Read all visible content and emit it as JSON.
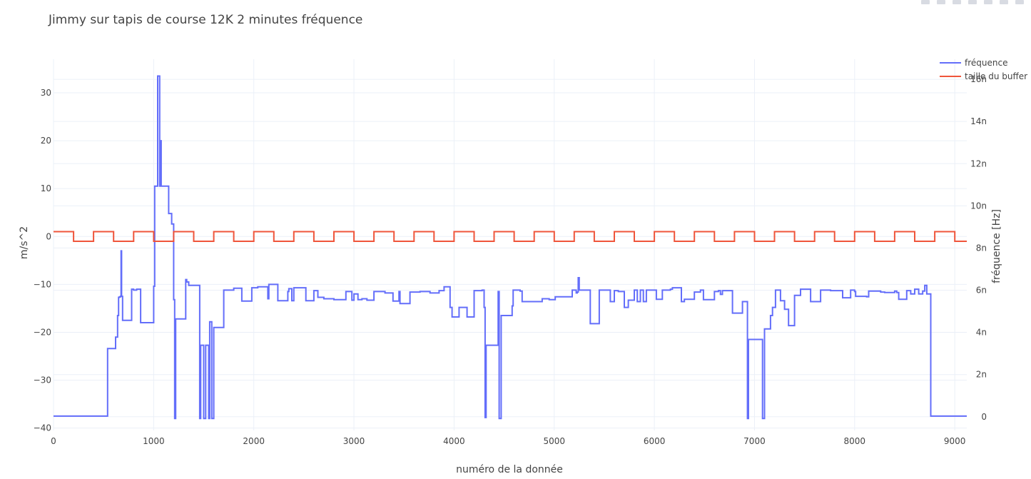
{
  "chart_data": {
    "type": "line",
    "title": "Jimmy sur tapis de course 12K 2 minutes fréquence",
    "xlabel": "numéro de la donnée",
    "ylabel": "m/s^2",
    "y2label": "fréquence [Hz]",
    "xlim": [
      0,
      9120
    ],
    "ylim": [
      -40.5,
      37
    ],
    "y2lim": [
      -0.65,
      16.95
    ],
    "x_ticks": [
      0,
      1000,
      2000,
      3000,
      4000,
      5000,
      6000,
      7000,
      8000,
      9000
    ],
    "x_tick_labels": [
      "0",
      "1000",
      "2000",
      "3000",
      "4000",
      "5000",
      "6000",
      "7000",
      "8000",
      "9000"
    ],
    "y_ticks": [
      -40,
      -30,
      -20,
      -10,
      0,
      10,
      20,
      30
    ],
    "y_tick_labels": [
      "−40",
      "−30",
      "−20",
      "−10",
      "0",
      "10",
      "20",
      "30"
    ],
    "y2_ticks": [
      0,
      2,
      4,
      6,
      8,
      10,
      12,
      14,
      16
    ],
    "y2_tick_labels": [
      "0",
      "2n",
      "4n",
      "6n",
      "8n",
      "10n",
      "12n",
      "14n",
      "16n"
    ],
    "grid": true,
    "legend_position": "top-right",
    "series": [
      {
        "name": "fréquence",
        "axis": "y",
        "color": "#636efa",
        "shape": "step",
        "x": [
          0,
          530,
          540,
          620,
          640,
          650,
          660,
          670,
          675,
          680,
          690,
          780,
          800,
          830,
          870,
          1000,
          1010,
          1030,
          1040,
          1060,
          1065,
          1075,
          1100,
          1150,
          1180,
          1200,
          1210,
          1220,
          1230,
          1240,
          1320,
          1330,
          1350,
          1450,
          1460,
          1470,
          1480,
          1500,
          1520,
          1550,
          1560,
          1580,
          1600,
          1700,
          1800,
          1880,
          1980,
          2040,
          2140,
          2150,
          2240,
          2340,
          2350,
          2380,
          2400,
          2520,
          2600,
          2640,
          2700,
          2800,
          2900,
          2920,
          2980,
          3000,
          3040,
          3080,
          3130,
          3200,
          3310,
          3390,
          3450,
          3460,
          3560,
          3660,
          3760,
          3850,
          3900,
          3960,
          3980,
          4050,
          4130,
          4200,
          4280,
          4300,
          4310,
          4320,
          4330,
          4440,
          4450,
          4470,
          4580,
          4590,
          4660,
          4680,
          4750,
          4840,
          4880,
          4950,
          5010,
          5060,
          5150,
          5180,
          5200,
          5220,
          5230,
          5240,
          5250,
          5260,
          5360,
          5450,
          5480,
          5560,
          5600,
          5640,
          5700,
          5740,
          5800,
          5830,
          5860,
          5890,
          5920,
          6020,
          6080,
          6110,
          6160,
          6180,
          6270,
          6300,
          6400,
          6460,
          6490,
          6550,
          6560,
          6580,
          6600,
          6620,
          6640,
          6660,
          6680,
          6700,
          6720,
          6740,
          6780,
          6800,
          6880,
          6900,
          6920,
          6930,
          6940,
          6950,
          6970,
          7020,
          7080,
          7100,
          7120,
          7140,
          7150,
          7160,
          7180,
          7210,
          7260,
          7300,
          7340,
          7400,
          7460,
          7560,
          7660,
          7700,
          7760,
          7800,
          7880,
          7960,
          8000,
          8010,
          8120,
          8140,
          8210,
          8260,
          8300,
          8400,
          8420,
          8440,
          8520,
          8540,
          8560,
          8600,
          8640,
          8680,
          8700,
          8720,
          8740,
          8760,
          9120
        ],
        "y": [
          -37.5,
          -37.5,
          -23.4,
          -21,
          -16.5,
          -12.7,
          -12.6,
          -12.5,
          -3,
          -12.5,
          -17.5,
          -11,
          -11.2,
          -11,
          -18,
          -10.4,
          10.5,
          10.5,
          33.5,
          10.5,
          20,
          10.5,
          10.5,
          4.8,
          2.6,
          -13.2,
          -38,
          -17.2,
          -17.2,
          -17.2,
          -9,
          -9.5,
          -10.2,
          -10.2,
          -38,
          -22.7,
          -22.7,
          -38,
          -22.7,
          -38,
          -17.8,
          -38,
          -19,
          -11.2,
          -10.8,
          -13.5,
          -10.7,
          -10.5,
          -13,
          -10,
          -13.4,
          -11.5,
          -10.9,
          -13.4,
          -10.7,
          -13.4,
          -11.3,
          -12.7,
          -13,
          -13.2,
          -13.2,
          -11.5,
          -13.3,
          -12,
          -13.2,
          -13,
          -13.3,
          -11.5,
          -11.8,
          -13.5,
          -11.5,
          -14,
          -11.6,
          -11.5,
          -11.8,
          -11.3,
          -10.5,
          -14.8,
          -16.8,
          -14.8,
          -16.8,
          -11.3,
          -11.2,
          -14.8,
          -37.8,
          -22.7,
          -22.7,
          -11.5,
          -38,
          -16.5,
          -14.5,
          -11.2,
          -11.4,
          -13.6,
          -13.6,
          -13.6,
          -13,
          -13.2,
          -12.6,
          -12.6,
          -12.6,
          -11.2,
          -11.2,
          -11.8,
          -11.6,
          -8.6,
          -11.2,
          -11.2,
          -18.2,
          -11.2,
          -11.2,
          -13.6,
          -11.3,
          -11.5,
          -14.8,
          -13.3,
          -11.2,
          -13.6,
          -11.2,
          -13.6,
          -11.2,
          -13.1,
          -11.2,
          -11.2,
          -11,
          -10.7,
          -13.6,
          -13.1,
          -11.6,
          -11.2,
          -13.2,
          -13.2,
          -13.2,
          -13.2,
          -11.5,
          -11.5,
          -11.3,
          -12.1,
          -11.3,
          -11.3,
          -11.3,
          -11.3,
          -16,
          -16,
          -13.6,
          -13.6,
          -13.6,
          -38,
          -21.5,
          -21.5,
          -21.5,
          -21.5,
          -38,
          -19.3,
          -19.3,
          -19.3,
          -19.3,
          -16.5,
          -14.8,
          -11.2,
          -13.4,
          -15.2,
          -18.6,
          -12.3,
          -11,
          -13.6,
          -11.2,
          -11.2,
          -11.3,
          -11.3,
          -12.8,
          -11.2,
          -11.5,
          -12.5,
          -12.6,
          -11.4,
          -11.4,
          -11.6,
          -11.7,
          -11.4,
          -11.7,
          -13.1,
          -11.3,
          -11.3,
          -12,
          -11,
          -12,
          -11.4,
          -10.2,
          -12,
          -12,
          -37.5,
          -37.5
        ]
      },
      {
        "name": "taille du buffer",
        "axis": "y",
        "color": "#ef553b",
        "shape": "square-wave",
        "x_start": 0,
        "x_end": 9120,
        "period": 400,
        "duty_high": 200,
        "high": 1,
        "low": -1
      }
    ]
  },
  "legend": {
    "items": [
      {
        "label": "fréquence",
        "color": "#636efa"
      },
      {
        "label": "taille du buffer",
        "color": "#ef553b"
      }
    ]
  }
}
